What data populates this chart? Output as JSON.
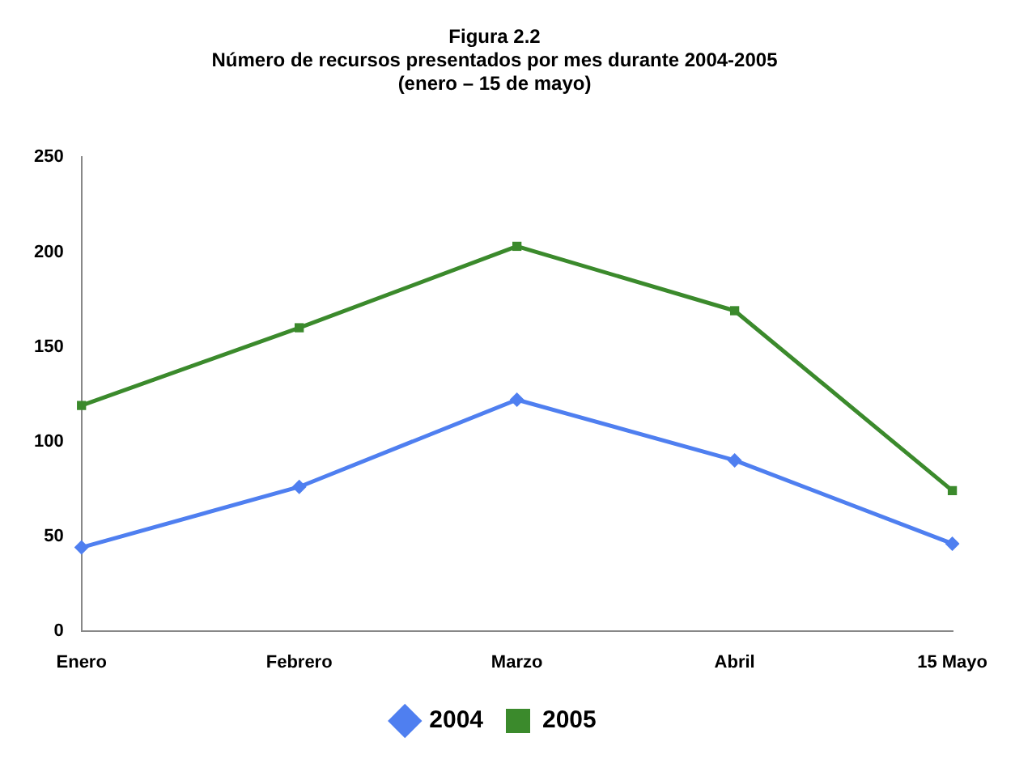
{
  "chart_data": {
    "type": "line",
    "title": [
      "Figura 2.2",
      "Número de recursos presentados por mes durante 2004-2005",
      "(enero – 15 de mayo)"
    ],
    "categories": [
      "Enero",
      "Febrero",
      "Marzo",
      "Abril",
      "15 Mayo"
    ],
    "series": [
      {
        "name": "2004",
        "color": "#4f7ff0",
        "marker": "diamond",
        "values": [
          44,
          76,
          122,
          90,
          46
        ]
      },
      {
        "name": "2005",
        "color": "#3b8a2c",
        "marker": "square",
        "values": [
          119,
          160,
          203,
          169,
          74
        ]
      }
    ],
    "ylim": [
      0,
      250
    ],
    "yticks": [
      0,
      50,
      100,
      150,
      200,
      250
    ],
    "grid": false,
    "legend": "bottom",
    "line_style": "solid"
  }
}
